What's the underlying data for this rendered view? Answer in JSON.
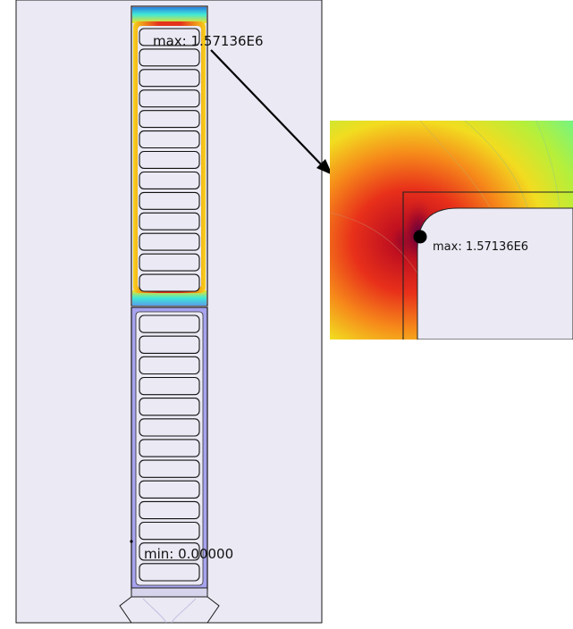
{
  "colors": {
    "domain_fill": "#eae9f4",
    "coil_hot": "#e0261e",
    "coil_cold": "#a7a3ee",
    "field_cyan": "#3ee8d8",
    "outline": "#1a1a1a",
    "marker": "#000000"
  },
  "main_view": {
    "max_label": "max: 1.57136E6",
    "min_label": "min: 0.00000",
    "upper_coil": {
      "state": "high field",
      "slot_count": 13
    },
    "lower_coil": {
      "state": "low field",
      "slot_count": 13
    }
  },
  "inset": {
    "max_label": "max: 1.57136E6",
    "marker_icon": "max-point-marker-icon",
    "pointer_icon": "zoom-arrow-icon"
  }
}
